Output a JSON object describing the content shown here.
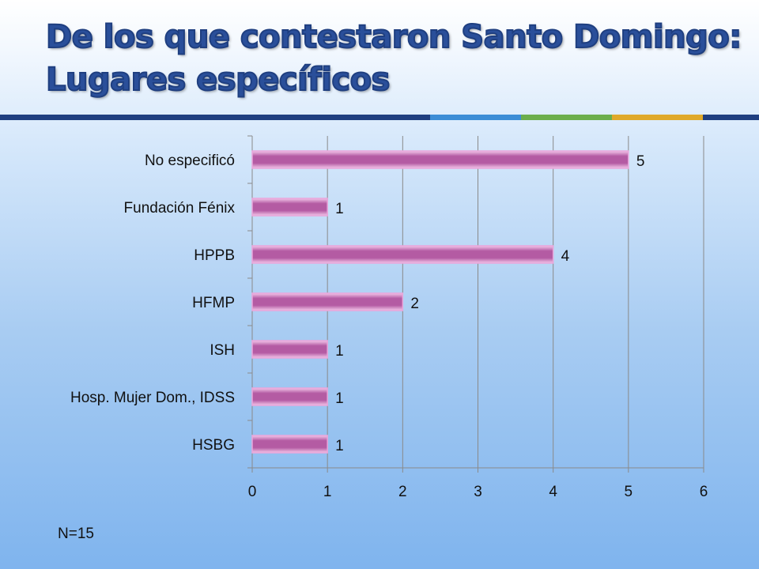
{
  "slide": {
    "title_line1": "De los que contestaron Santo Domingo:",
    "title_line2": "Lugares específicos",
    "footnote": "N=15"
  },
  "colors": {
    "title": "#2a4f9a",
    "bar": "#b45ba3",
    "rule_main": "#1f3f80",
    "rule_segments": [
      "#3c8dd6",
      "#6cae4c",
      "#e0a92a",
      "#1f3f80"
    ]
  },
  "chart_data": {
    "type": "bar",
    "orientation": "horizontal",
    "categories": [
      "No especificó",
      "Fundación Fénix",
      "HPPB",
      "HFMP",
      "ISH",
      "Hosp. Mujer Dom., IDSS",
      "HSBG"
    ],
    "values": [
      5,
      1,
      4,
      2,
      1,
      1,
      1
    ],
    "data_labels": [
      "5",
      "1",
      "4",
      "2",
      "1",
      "1",
      "1"
    ],
    "xlim": [
      0,
      6
    ],
    "x_ticks": [
      "0",
      "1",
      "2",
      "3",
      "4",
      "5",
      "6"
    ],
    "grid": "vertical",
    "legend": "none"
  }
}
